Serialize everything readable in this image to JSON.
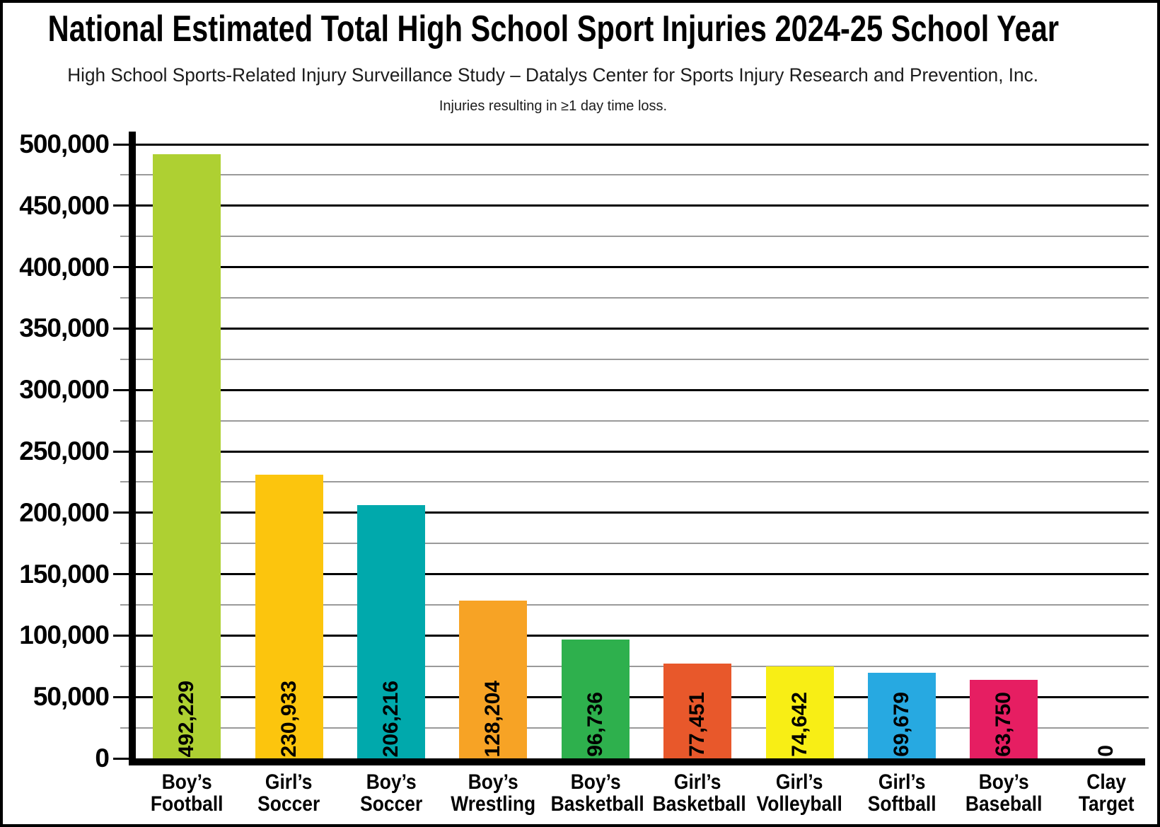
{
  "header": {
    "title": "National Estimated Total High School Sport Injuries 2024-25 School Year",
    "subtitle": "High School Sports-Related Injury Surveillance Study – Datalys Center for Sports Injury Research and Prevention, Inc.",
    "note": "Injuries resulting in ≥1 day time loss."
  },
  "chart_data": {
    "type": "bar",
    "title": "National Estimated Total High School Sport Injuries 2024-25 School Year",
    "subtitle": "High School Sports-Related Injury Surveillance Study – Datalys Center for Sports Injury Research and Prevention, Inc.",
    "annotation": "Injuries resulting in ≥1 day time loss.",
    "categories": [
      "Boy’s Football",
      "Girl’s Soccer",
      "Boy’s Soccer",
      "Boy’s Wrestling",
      "Boy’s Basketball",
      "Girl’s Basketball",
      "Girl’s Volleyball",
      "Girl’s Softball",
      "Boy’s Baseball",
      "Clay Target"
    ],
    "category_lines": [
      [
        "Boy’s",
        "Football"
      ],
      [
        "Girl’s",
        "Soccer"
      ],
      [
        "Boy’s",
        "Soccer"
      ],
      [
        "Boy’s",
        "Wrestling"
      ],
      [
        "Boy’s",
        "Basketball"
      ],
      [
        "Girl’s",
        "Basketball"
      ],
      [
        "Girl’s",
        "Volleyball"
      ],
      [
        "Girl’s",
        "Softball"
      ],
      [
        "Boy’s",
        "Baseball"
      ],
      [
        "Clay",
        "Target"
      ]
    ],
    "values": [
      492229,
      230933,
      206216,
      128204,
      96736,
      77451,
      74642,
      69679,
      63750,
      0
    ],
    "value_labels": [
      "492,229",
      "230,933",
      "206,216",
      "128,204",
      "96,736",
      "77,451",
      "74,642",
      "69,679",
      "63,750",
      "0"
    ],
    "bar_colors": [
      "#aed032",
      "#fcc50d",
      "#00a9ac",
      "#f7a325",
      "#2eb04d",
      "#e8582b",
      "#f8ee15",
      "#27a9e1",
      "#e61e62",
      null
    ],
    "xlabel": "",
    "ylabel": "",
    "ylim": [
      0,
      500000
    ],
    "y_major_step": 50000,
    "y_minor_step": 25000,
    "y_tick_labels": [
      "0",
      "50,000",
      "100,000",
      "150,000",
      "200,000",
      "250,000",
      "300,000",
      "350,000",
      "400,000",
      "450,000",
      "500,000"
    ],
    "grid": "horizontal; major black at 50,000 steps, minor gray at 25,000 steps",
    "legend": "none",
    "value_label_rotation_deg": -90,
    "colors": {
      "major_grid": "#000000",
      "minor_grid": "#9a9a9a",
      "axis": "#000000",
      "text": "#000000",
      "background": "#ffffff"
    }
  }
}
